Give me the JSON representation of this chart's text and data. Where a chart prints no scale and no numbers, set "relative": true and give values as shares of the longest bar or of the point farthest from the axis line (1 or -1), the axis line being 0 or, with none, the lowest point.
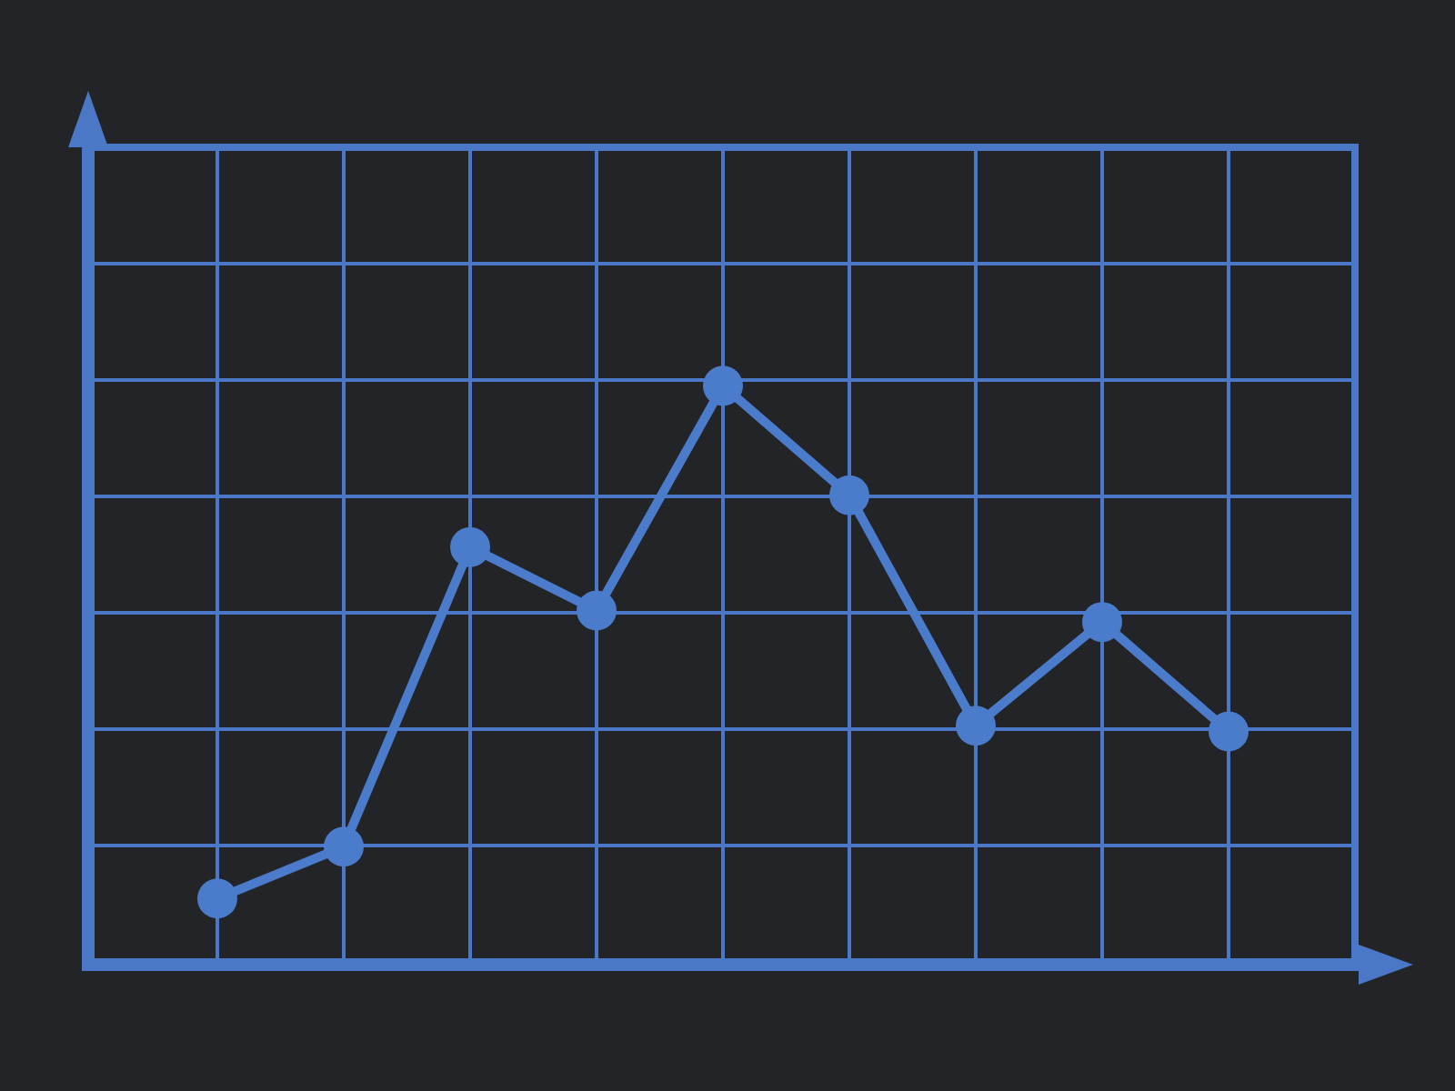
{
  "chart_data": {
    "type": "line",
    "relative": true,
    "categories": [
      null,
      null,
      null,
      null,
      null,
      null,
      null,
      null,
      null
    ],
    "values": [
      0.11,
      0.2,
      0.72,
      0.61,
      1,
      0.81,
      0.41,
      0.59,
      0.4
    ],
    "color": "#4b7bcb",
    "marker": "circle",
    "grid": true
  }
}
